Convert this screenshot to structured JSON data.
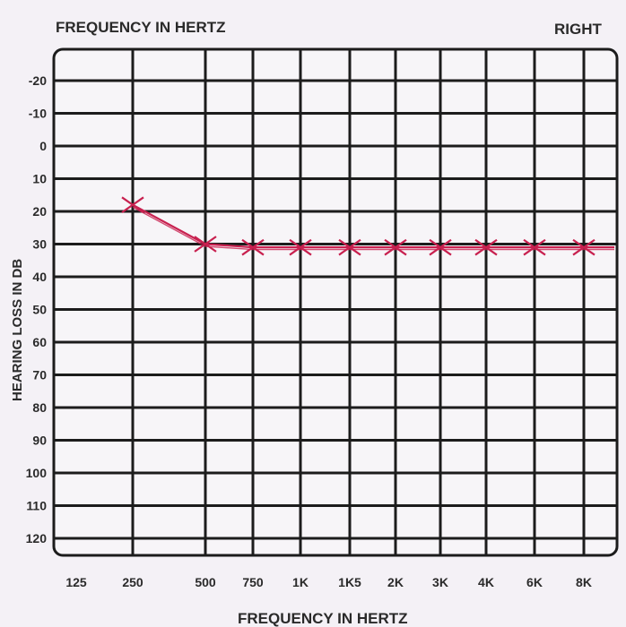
{
  "header": {
    "top_label": "FREQUENCY IN HERTZ",
    "ear_label": "RIGHT"
  },
  "chart_data": {
    "type": "line",
    "xlabel": "FREQUENCY IN HERTZ",
    "ylabel": "HEARING LOSS IN DB",
    "x_categories": [
      "125",
      "250",
      "500",
      "750",
      "1K",
      "1K5",
      "2K",
      "3K",
      "4K",
      "6K",
      "8K"
    ],
    "y_ticks": [
      -20,
      -10,
      0,
      10,
      20,
      30,
      40,
      50,
      60,
      70,
      80,
      90,
      100,
      110,
      120
    ],
    "ylim": [
      -20,
      120
    ],
    "y_inverted": true,
    "grid": true,
    "series": [
      {
        "marker": "x",
        "color": "#c8204f",
        "points": [
          {
            "x": "250",
            "y": 18
          },
          {
            "x": "500",
            "y": 30
          },
          {
            "x": "750",
            "y": 31
          },
          {
            "x": "1K",
            "y": 31
          },
          {
            "x": "1K5",
            "y": 31
          },
          {
            "x": "2K",
            "y": 31
          },
          {
            "x": "3K",
            "y": 31
          },
          {
            "x": "4K",
            "y": 31
          },
          {
            "x": "6K",
            "y": 31
          },
          {
            "x": "8K",
            "y": 31
          }
        ]
      }
    ]
  }
}
